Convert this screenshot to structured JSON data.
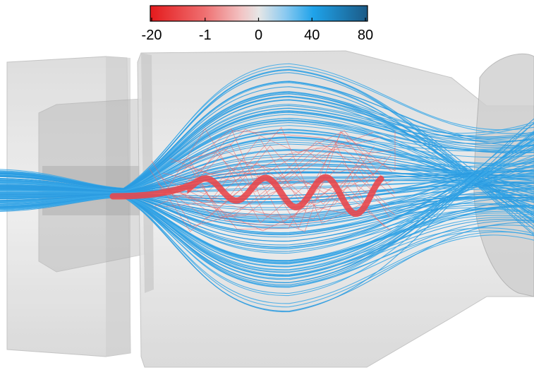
{
  "colorbar": {
    "ticks": [
      -20,
      -1,
      0,
      40,
      80
    ]
  }
}
